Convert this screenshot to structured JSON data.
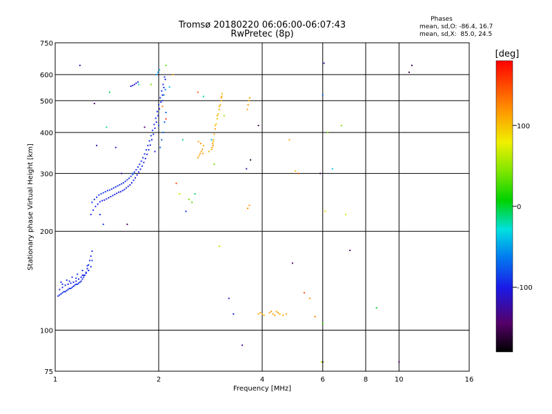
{
  "chart_data": {
    "type": "scatter",
    "title": "Tromsø 20180220 06:06:00-06:07:43",
    "subtitle": "RwPretec (8p)",
    "phases_header": "Phases",
    "phases_line1": "mean, sd,O: -86.4, 16.7",
    "phases_line2": "mean, sd,X:  85.0, 24.5",
    "xlabel": "Frequency [MHz]",
    "ylabel": "Stationary phase Virtual Height [km]",
    "x_scale": "log",
    "y_scale": "log",
    "xlim": [
      1,
      16
    ],
    "ylim": [
      75,
      750
    ],
    "x_ticks": [
      1,
      2,
      4,
      6,
      8,
      10,
      16
    ],
    "x_tick_labels": [
      "1",
      "2",
      "4",
      "6",
      "8",
      "10",
      "16"
    ],
    "y_ticks": [
      75,
      100,
      200,
      300,
      400,
      500,
      600,
      750
    ],
    "y_tick_labels": [
      "75",
      "100",
      "200",
      "300",
      "400",
      "500",
      "600",
      "750"
    ],
    "grid": true,
    "colorbar": {
      "label": "[deg]",
      "range": [
        -180,
        180
      ],
      "ticks": [
        100,
        0,
        -100
      ],
      "tick_labels": [
        "100",
        "0",
        "-100"
      ]
    },
    "series": [
      {
        "x": [
          1.02,
          1.03,
          1.04,
          1.05,
          1.06,
          1.07,
          1.08,
          1.09,
          1.1,
          1.11,
          1.12,
          1.13,
          1.14,
          1.15,
          1.16,
          1.17,
          1.18,
          1.19,
          1.2,
          1.21,
          1.22,
          1.23,
          1.24,
          1.25,
          1.26,
          1.27,
          1.28,
          1.03,
          1.05,
          1.07,
          1.09,
          1.11,
          1.13,
          1.15,
          1.17,
          1.19,
          1.21,
          1.23,
          1.25,
          1.27,
          1.04,
          1.08,
          1.12,
          1.16,
          1.2,
          1.24,
          1.28,
          1.05,
          1.1,
          1.15,
          1.2,
          1.25
        ],
        "y": [
          127,
          128,
          129,
          130,
          131,
          131,
          132,
          133,
          134,
          134,
          135,
          136,
          137,
          138,
          138,
          139,
          140,
          141,
          143,
          145,
          147,
          150,
          154,
          158,
          163,
          168,
          174,
          133,
          135,
          137,
          138,
          139,
          140,
          141,
          143,
          145,
          147,
          149,
          152,
          156,
          140,
          142,
          145,
          148,
          152,
          157,
          163,
          138,
          141,
          144,
          147,
          152
        ],
        "phase": [
          -95,
          -90,
          -92,
          -88,
          -96,
          -91,
          -89,
          -94,
          -90,
          -87,
          -93,
          -91,
          -95,
          -88,
          -90,
          -92,
          -86,
          -94,
          -91,
          -89,
          -93,
          -90,
          -96,
          -88,
          -92,
          -95,
          -90,
          -98,
          -95,
          -100,
          -97,
          -99,
          -96,
          -101,
          -98,
          -100,
          -97,
          -99,
          -96,
          -98,
          -92,
          -90,
          -94,
          -91,
          -93,
          -89,
          -92,
          -88,
          -91,
          -90,
          -93,
          -89
        ]
      },
      {
        "x": [
          1.27,
          1.29,
          1.31,
          1.33,
          1.35,
          1.37,
          1.39,
          1.41,
          1.43,
          1.45,
          1.47,
          1.49,
          1.51,
          1.53,
          1.55,
          1.57,
          1.59,
          1.61,
          1.63,
          1.65,
          1.67,
          1.69,
          1.71,
          1.73,
          1.75,
          1.77,
          1.79,
          1.81,
          1.83,
          1.85,
          1.87,
          1.89,
          1.91,
          1.93,
          1.95,
          1.97,
          1.99,
          2.01,
          2.03,
          2.05,
          2.07,
          2.09,
          1.28,
          1.3,
          1.32,
          1.34,
          1.36,
          1.38,
          1.4,
          1.42,
          1.44,
          1.46,
          1.48,
          1.5,
          1.52,
          1.54,
          1.56,
          1.58,
          1.6,
          1.62,
          1.64,
          1.66,
          1.68,
          1.7,
          1.72,
          1.74,
          1.76,
          1.78,
          1.8,
          1.82,
          1.84,
          1.86,
          1.88,
          1.9,
          1.92,
          1.94,
          1.96,
          1.98,
          2.0,
          2.02,
          2.04,
          2.06,
          2.08,
          2.02,
          2.04,
          2.06,
          2.08,
          2.1,
          2.05,
          2.07,
          2.09,
          1.66,
          1.68,
          1.7,
          1.72,
          1.74,
          1.97,
          1.99,
          2.01
        ],
        "y": [
          225,
          232,
          238,
          242,
          246,
          248,
          249,
          251,
          253,
          255,
          257,
          259,
          261,
          263,
          264,
          266,
          268,
          271,
          274,
          277,
          281,
          286,
          291,
          297,
          303,
          309,
          316,
          324,
          333,
          343,
          354,
          366,
          380,
          395,
          412,
          430,
          450,
          472,
          495,
          520,
          548,
          580,
          245,
          250,
          254,
          258,
          260,
          262,
          264,
          266,
          267,
          269,
          271,
          273,
          275,
          277,
          279,
          281,
          284,
          287,
          290,
          294,
          298,
          303,
          308,
          314,
          320,
          327,
          335,
          344,
          354,
          365,
          377,
          391,
          406,
          423,
          442,
          463,
          486,
          510,
          535,
          560,
          590,
          360,
          380,
          400,
          430,
          460,
          500,
          520,
          540,
          553,
          556,
          560,
          565,
          570,
          600,
          610,
          620
        ],
        "phase": [
          -95,
          -98,
          -100,
          -96,
          -94,
          -99,
          -97,
          -95,
          -101,
          -98,
          -96,
          -94,
          -99,
          -97,
          -100,
          -95,
          -98,
          -96,
          -94,
          -99,
          -97,
          -95,
          -100,
          -98,
          -96,
          -99,
          -97,
          -95,
          -98,
          -100,
          -96,
          -99,
          -97,
          -95,
          -98,
          -96,
          -94,
          -99,
          -97,
          -100,
          -96,
          -98,
          -88,
          -90,
          -92,
          -94,
          -89,
          -91,
          -93,
          -90,
          -88,
          -92,
          -94,
          -90,
          -89,
          -91,
          -93,
          -90,
          -88,
          -92,
          -94,
          -90,
          -89,
          -91,
          -93,
          -90,
          -88,
          -92,
          -94,
          -90,
          -89,
          -91,
          -93,
          -90,
          -88,
          -92,
          -94,
          -90,
          -89,
          -91,
          -93,
          -90,
          -88,
          -70,
          -75,
          -72,
          -68,
          -74,
          -80,
          -66,
          -60,
          -104,
          -102,
          -106,
          -103,
          -105,
          -55,
          -50,
          -45
        ]
      },
      {
        "x": [
          2.6,
          2.62,
          2.64,
          2.66,
          2.68,
          2.7,
          2.61,
          2.65,
          2.69,
          2.85,
          2.86,
          2.87,
          2.88,
          2.89,
          2.9,
          2.92,
          2.94,
          2.96,
          2.98,
          3.0,
          3.02,
          3.04,
          3.05,
          3.06,
          2.88,
          2.92,
          2.96,
          3.0,
          3.04,
          3.62,
          3.64,
          3.66,
          3.68,
          3.63,
          3.67
        ],
        "y": [
          335,
          340,
          345,
          350,
          355,
          365,
          375,
          370,
          345,
          355,
          360,
          370,
          375,
          380,
          395,
          410,
          425,
          440,
          455,
          470,
          485,
          500,
          515,
          525,
          365,
          420,
          450,
          480,
          510,
          470,
          485,
          500,
          510,
          235,
          240
        ],
        "phase": [
          115,
          112,
          118,
          110,
          120,
          108,
          114,
          122,
          116,
          112,
          118,
          110,
          105,
          100,
          108,
          115,
          95,
          100,
          104,
          110,
          112,
          108,
          114,
          106,
          118,
          102,
          110,
          106,
          114,
          112,
          118,
          108,
          115,
          120,
          116
        ]
      },
      {
        "x": [
          3.9,
          3.95,
          4.0,
          4.05,
          4.2,
          4.25,
          4.3,
          4.35,
          4.4,
          4.45,
          4.5,
          4.6,
          4.7
        ],
        "y": [
          112,
          113,
          112,
          111,
          113,
          114,
          112,
          111,
          114,
          113,
          112,
          111,
          112
        ],
        "phase": [
          110,
          115,
          108,
          105,
          112,
          118,
          106,
          114,
          110,
          116,
          108,
          112,
          115
        ]
      },
      {
        "x": [
          1.18,
          1.3,
          1.32,
          1.35,
          1.38,
          1.41,
          1.44,
          1.5,
          1.56,
          1.62,
          1.68,
          1.75,
          1.82,
          1.9,
          1.95,
          2.0,
          2.1,
          2.15,
          2.2,
          2.25,
          2.3,
          2.35,
          2.4,
          2.45,
          2.5,
          2.55,
          2.6,
          2.7,
          2.8,
          2.85,
          2.9,
          3.0,
          3.1,
          3.2,
          3.3,
          3.5,
          3.6,
          3.7,
          3.9,
          4.8,
          4.9,
          5.0,
          5.1,
          5.3,
          5.5,
          5.7,
          5.9,
          6.0,
          6.1,
          6.2,
          6.4,
          6.8,
          7.0,
          7.2,
          8.6,
          10.0,
          10.9,
          10.7,
          6.0,
          6.05,
          2.1,
          2.05,
          5.95,
          6.0
        ],
        "y": [
          640,
          490,
          365,
          225,
          210,
          415,
          530,
          360,
          300,
          210,
          300,
          560,
          415,
          560,
          350,
          420,
          640,
          550,
          600,
          280,
          260,
          380,
          230,
          250,
          245,
          260,
          530,
          515,
          350,
          380,
          320,
          180,
          450,
          125,
          112,
          90,
          310,
          330,
          420,
          380,
          160,
          305,
          300,
          130,
          125,
          110,
          300,
          520,
          230,
          400,
          310,
          420,
          225,
          175,
          117,
          80,
          640,
          610,
          80,
          650,
          440,
          480,
          80,
          105
        ],
        "phase": [
          -120,
          -135,
          -120,
          -95,
          -90,
          -20,
          -5,
          -110,
          -130,
          -150,
          -60,
          -20,
          -140,
          40,
          -100,
          -80,
          30,
          -40,
          110,
          150,
          60,
          -15,
          -90,
          40,
          30,
          -10,
          140,
          -15,
          110,
          -45,
          40,
          60,
          50,
          -110,
          -100,
          -130,
          -120,
          -160,
          -150,
          110,
          -140,
          100,
          145,
          150,
          120,
          130,
          -150,
          -70,
          90,
          40,
          -40,
          40,
          60,
          -140,
          0,
          -140,
          -160,
          -160,
          -170,
          -120,
          160,
          130,
          60,
          20
        ]
      }
    ]
  }
}
